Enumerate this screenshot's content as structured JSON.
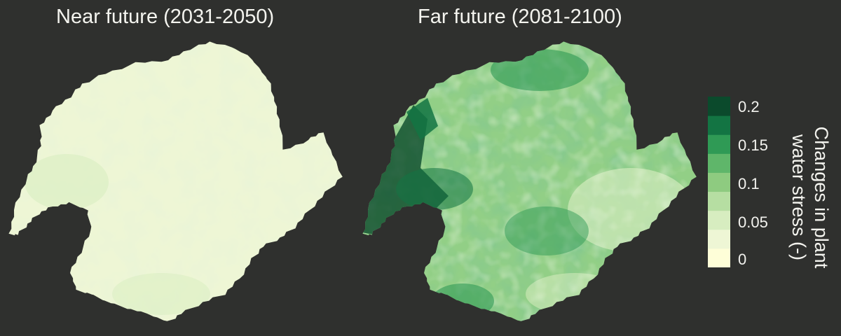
{
  "panels": [
    {
      "title": "Near future (2031-2050)",
      "base_color": "#eef6d5",
      "level_mean": 0.03
    },
    {
      "title": "Far future (2081-2100)",
      "base_color": "#92cf86",
      "level_mean": 0.1
    }
  ],
  "legend": {
    "title_line1": "Changes in plant",
    "title_line2": "water stress (-)",
    "ticks": [
      "0.2",
      "0.15",
      "0.1",
      "0.05",
      "0"
    ],
    "tick_values": [
      0.2,
      0.15,
      0.1,
      0.05,
      0
    ],
    "color_bins": [
      "#fefed8",
      "#eef6d5",
      "#d7edc0",
      "#b6dea2",
      "#8ecb80",
      "#5fb66a",
      "#2f9a55",
      "#137443",
      "#0b4a2c"
    ],
    "range": [
      0,
      0.22
    ]
  },
  "colors": {
    "background": "#2f302e",
    "text": "#f4f4ef"
  }
}
